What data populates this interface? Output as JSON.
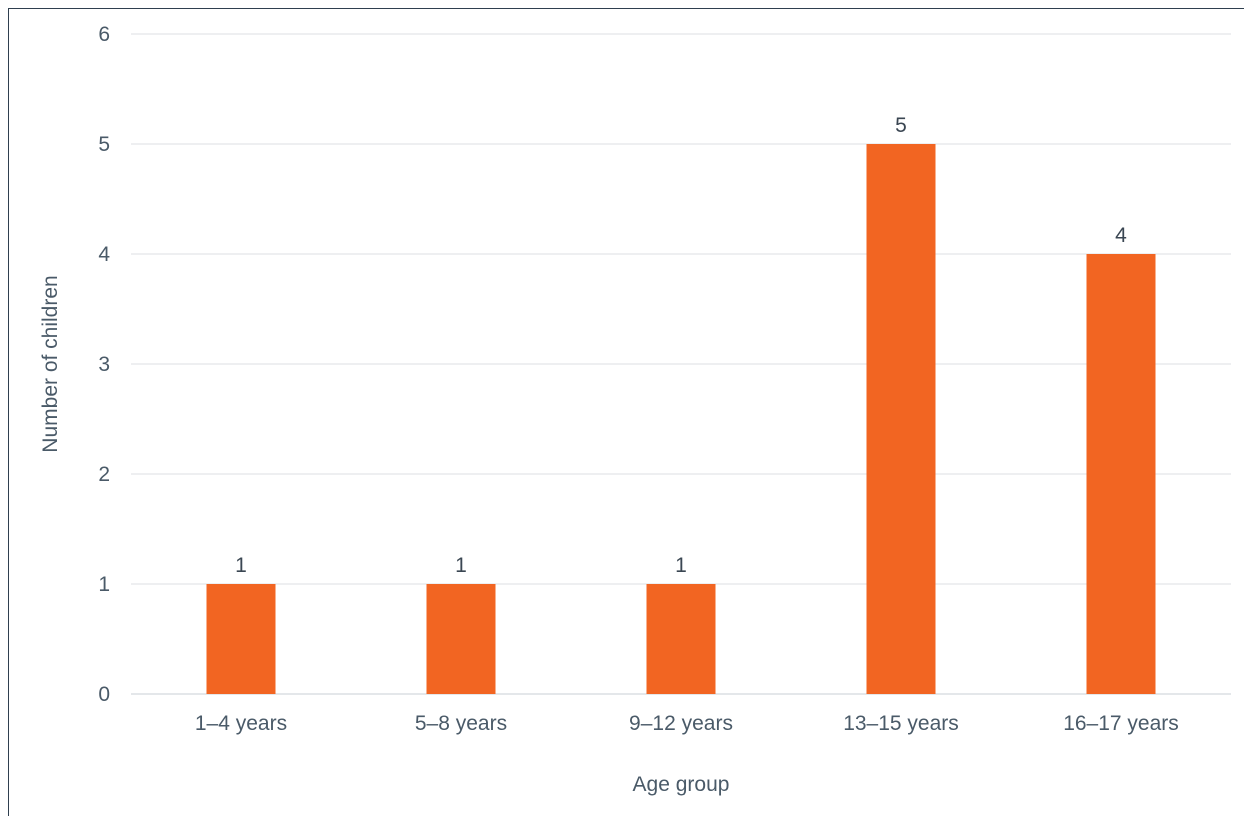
{
  "chart_data": {
    "type": "bar",
    "title": "",
    "xlabel": "Age group",
    "ylabel": "Number of children",
    "categories": [
      "1–4 years",
      "5–8 years",
      "9–12 years",
      "13–15 years",
      "16–17 years"
    ],
    "values": [
      1,
      1,
      1,
      5,
      4
    ],
    "ylim": [
      0,
      6
    ],
    "yticks": [
      0,
      1,
      2,
      3,
      4,
      5,
      6
    ],
    "grid": true,
    "legend": "none",
    "bar_color": "#f26522",
    "grid_color": "#dcdfe3",
    "text_color": "#4a5a68"
  }
}
